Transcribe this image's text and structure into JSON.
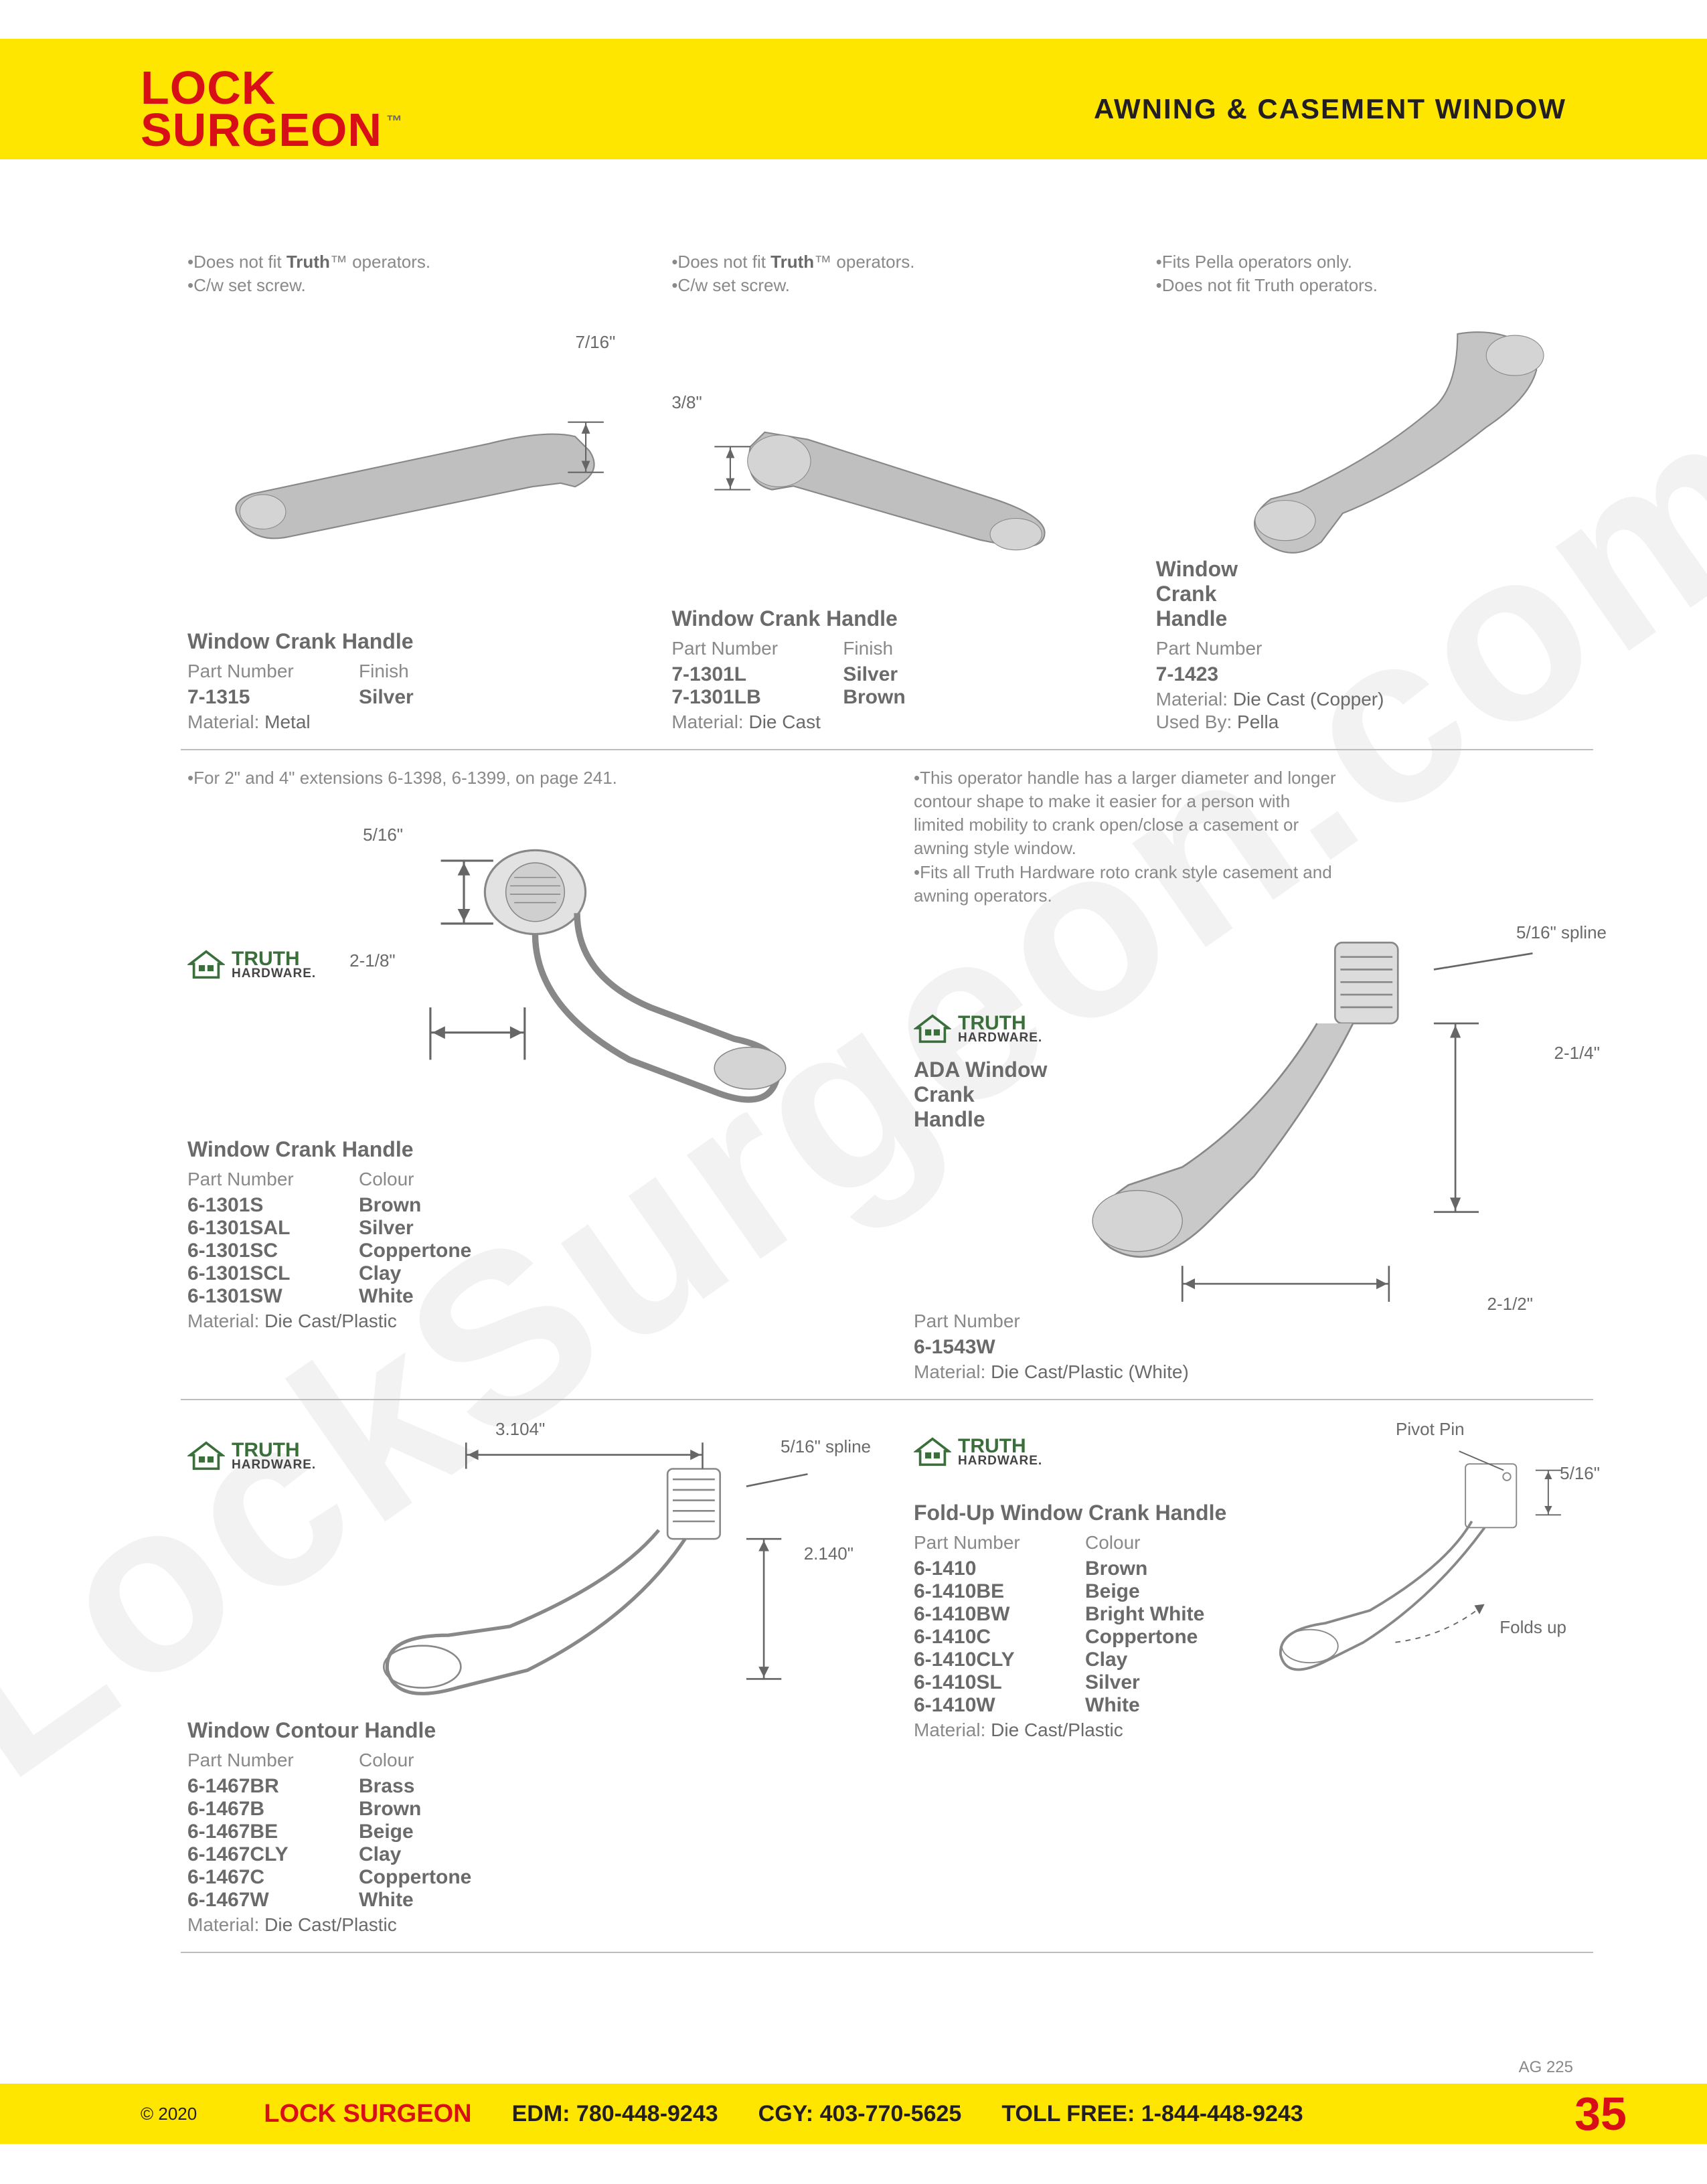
{
  "colors": {
    "yellow": "#ffe600",
    "red": "#d80f16",
    "text": "#6a6a6a",
    "light": "#898989",
    "border": "#bdbdbd",
    "black": "#231f20",
    "green": "#3a6e3a"
  },
  "logo": {
    "line1": "LOCK",
    "line2": "SURGEON",
    "tm": "™"
  },
  "header_title": "AWNING & CASEMENT WINDOW",
  "brand": {
    "name": "TRUTH",
    "sub": "HARDWARE."
  },
  "row1": [
    {
      "notes": [
        "•Does not fit <strong>Truth</strong>™ operators.",
        "•C/w set screw."
      ],
      "dim": "7/16\"",
      "title": "Window Crank Handle",
      "headA": "Part Number",
      "headB": "Finish",
      "variants": [
        {
          "pn": "7-1315",
          "fin": "Silver"
        }
      ],
      "material": "Metal"
    },
    {
      "notes": [
        "•Does not fit <strong>Truth</strong>™ operators.",
        "•C/w set screw."
      ],
      "dim": "3/8\"",
      "title": "Window Crank Handle",
      "headA": "Part Number",
      "headB": "Finish",
      "variants": [
        {
          "pn": "7-1301L",
          "fin": "Silver"
        },
        {
          "pn": "7-1301LB",
          "fin": "Brown"
        }
      ],
      "material": "Die Cast"
    },
    {
      "notes": [
        "•Fits Pella operators only.",
        "•Does not fit Truth operators."
      ],
      "title": "Window Crank Handle",
      "headA": "Part Number",
      "variants": [
        {
          "pn": "7-1423"
        }
      ],
      "material": "Die Cast (Copper)",
      "usedby": "Pella"
    }
  ],
  "row2": [
    {
      "notes": [
        "•For 2\" and 4\" extensions 6-1398, 6-1399, on page 241."
      ],
      "dimA": "5/16\"",
      "dimB": "2-1/8\"",
      "title": "Window Crank Handle",
      "headA": "Part Number",
      "headB": "Colour",
      "variants": [
        {
          "pn": "6-1301S",
          "fin": "Brown"
        },
        {
          "pn": "6-1301SAL",
          "fin": "Silver"
        },
        {
          "pn": "6-1301SC",
          "fin": "Coppertone"
        },
        {
          "pn": "6-1301SCL",
          "fin": "Clay"
        },
        {
          "pn": "6-1301SW",
          "fin": "White"
        }
      ],
      "material": "Die Cast/Plastic",
      "showBrand": true
    },
    {
      "notes": [
        "•This operator handle has a larger diameter and longer contour shape to make it easier for a person with limited mobility to crank open/close a casement or awning style window.",
        "•Fits all Truth Hardware roto crank style casement and awning operators."
      ],
      "dimA": "5/16\" spline",
      "dimB": "2-1/4\"",
      "dimC": "2-1/2\"",
      "title": "ADA Window Crank Handle",
      "headA": "Part Number",
      "variants": [
        {
          "pn": "6-1543W"
        }
      ],
      "material": "Die Cast/Plastic (White)",
      "showBrand": true
    }
  ],
  "row3": [
    {
      "title": "Window Contour Handle",
      "dimA": "3.104\"",
      "dimB": "5/16\" spline",
      "dimC": "2.140\"",
      "headA": "Part Number",
      "headB": "Colour",
      "variants": [
        {
          "pn": "6-1467BR",
          "fin": "Brass"
        },
        {
          "pn": "6-1467B",
          "fin": "Brown"
        },
        {
          "pn": "6-1467BE",
          "fin": "Beige"
        },
        {
          "pn": "6-1467CLY",
          "fin": "Clay"
        },
        {
          "pn": "6-1467C",
          "fin": "Coppertone"
        },
        {
          "pn": "6-1467W",
          "fin": "White"
        }
      ],
      "material": "Die Cast/Plastic",
      "showBrand": true
    },
    {
      "title": "Fold-Up Window Crank Handle",
      "dimA": "Pivot Pin",
      "dimB": "5/16\"",
      "dimC": "Folds up",
      "headA": "Part Number",
      "headB": "Colour",
      "variants": [
        {
          "pn": "6-1410",
          "fin": "Brown"
        },
        {
          "pn": "6-1410BE",
          "fin": "Beige"
        },
        {
          "pn": "6-1410BW",
          "fin": "Bright White"
        },
        {
          "pn": "6-1410C",
          "fin": "Coppertone"
        },
        {
          "pn": "6-1410CLY",
          "fin": "Clay"
        },
        {
          "pn": "6-1410SL",
          "fin": "Silver"
        },
        {
          "pn": "6-1410W",
          "fin": "White"
        }
      ],
      "material": "Die Cast/Plastic",
      "showBrand": true
    }
  ],
  "footer": {
    "copy": "© 2020",
    "brand": "LOCK SURGEON",
    "edm": "EDM: 780-448-9243",
    "cgy": "CGY: 403-770-5625",
    "toll": "TOLL FREE: 1-844-448-9243",
    "page": "35",
    "ref": "AG 225"
  },
  "watermark": "LockSurgeon.com"
}
